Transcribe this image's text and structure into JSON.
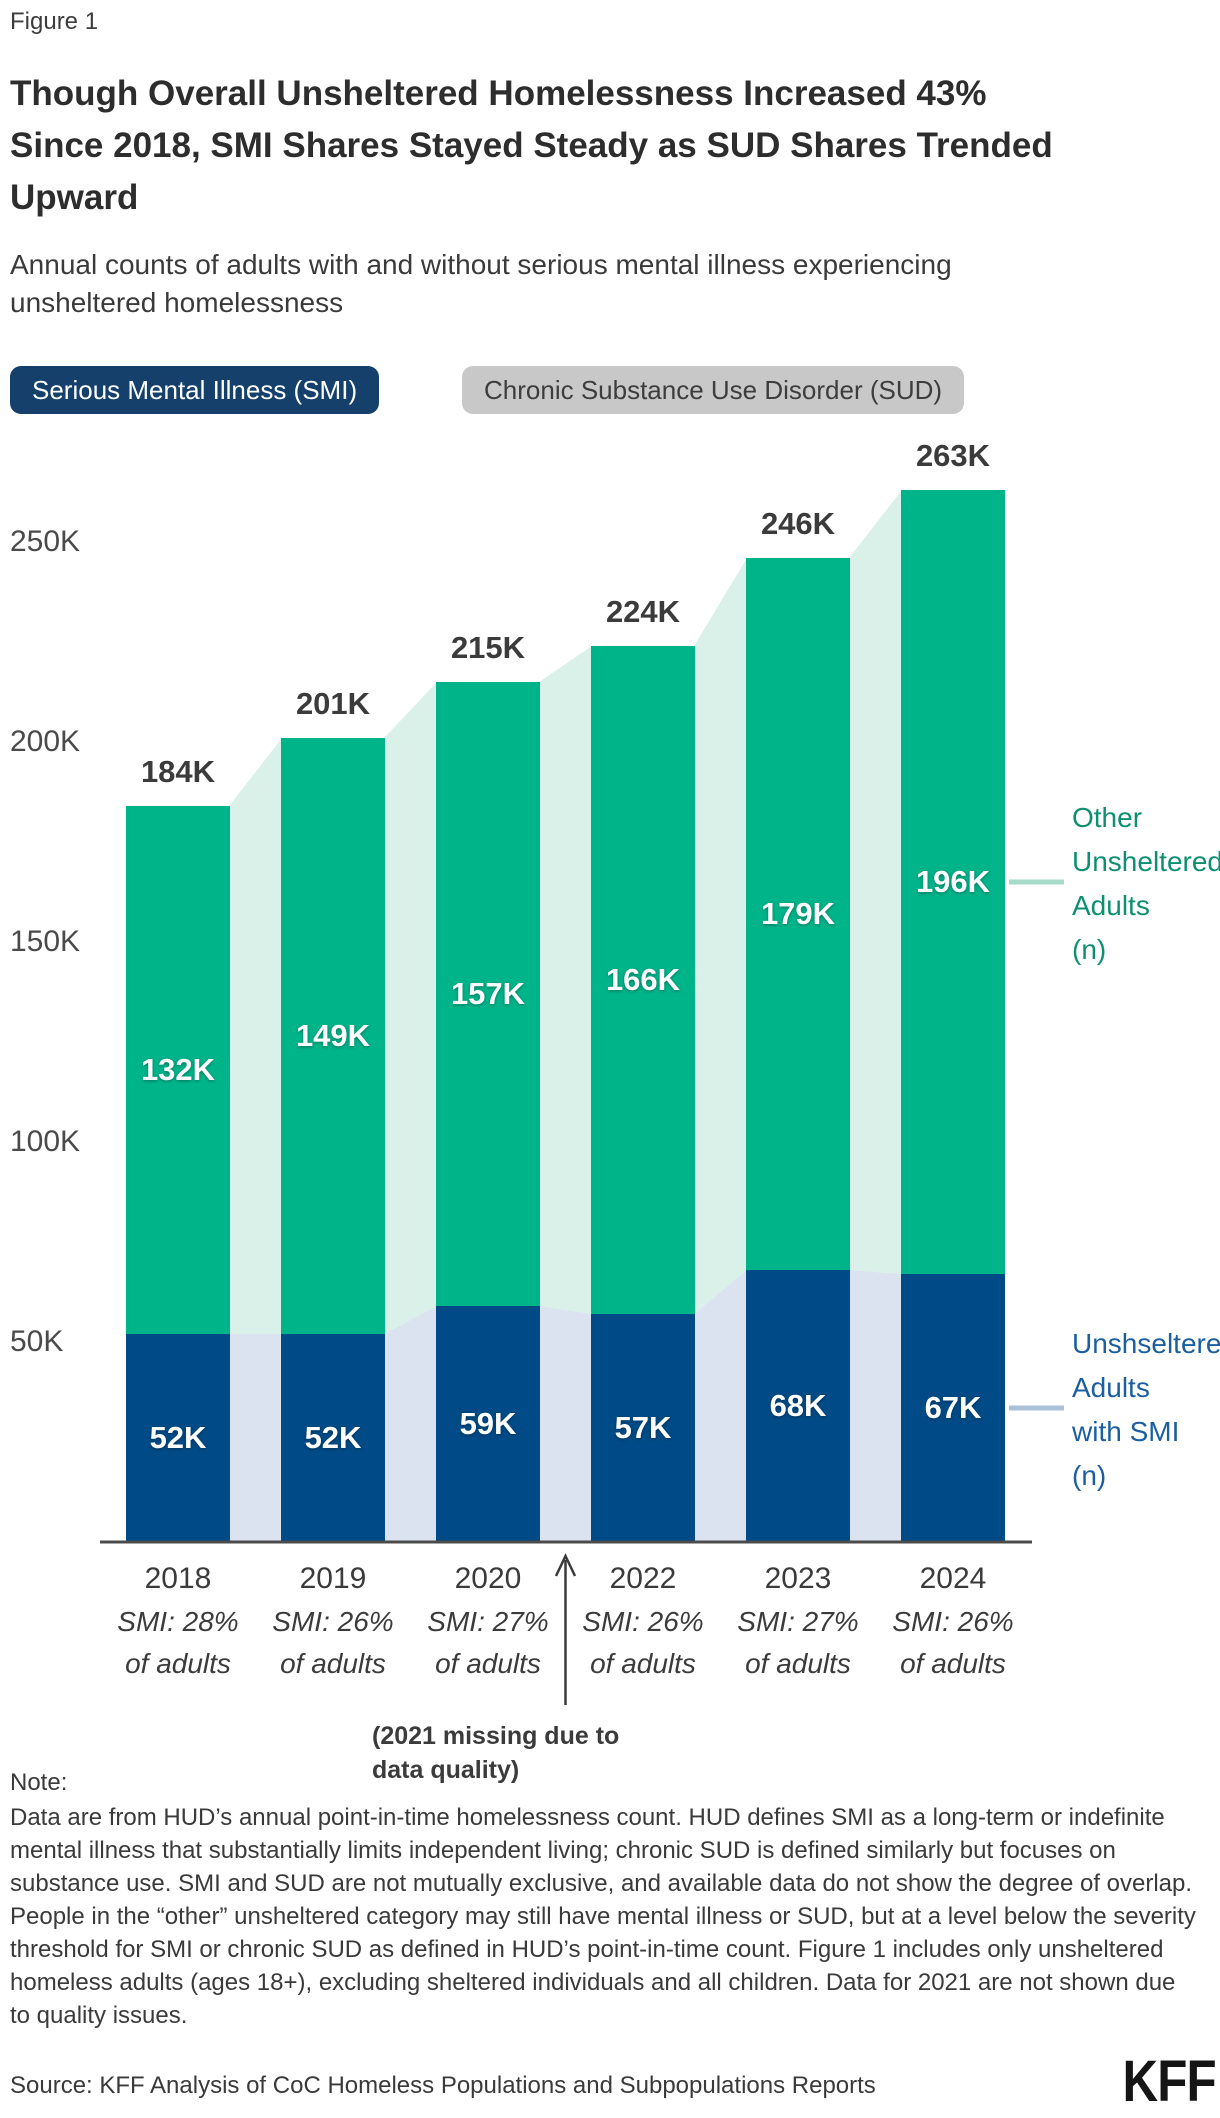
{
  "header": {
    "figure_label": "Figure 1",
    "title_lines": [
      "Though Overall Unsheltered Homelessness Increased 43%",
      "Since 2018, SMI Shares Stayed Steady as SUD Shares Trended",
      "Upward"
    ],
    "subtitle_lines": [
      "Annual counts of adults with and without serious mental illness experiencing",
      "unsheltered homelessness"
    ]
  },
  "legend": {
    "smi_label": "Serious Mental Illness (SMI)",
    "sud_label": "Chronic Substance Use Disorder (SUD)"
  },
  "annotations": {
    "other_lines": [
      "Other",
      "Unsheltered",
      "Adults",
      "(n)"
    ],
    "smi_lines": [
      "Unshseltered",
      "Adults",
      "with SMI",
      "(n)"
    ],
    "missing_note_lines": [
      "(2021 missing due to",
      "data quality)"
    ]
  },
  "note": {
    "label": "Note:",
    "text": "Data are from HUD’s annual point-in-time homelessness count. HUD defines SMI as a long-term or indefinite mental illness that substantially limits independent living; chronic SUD is defined similarly but focuses on substance use. SMI and SUD are not mutually exclusive, and available data do not show the degree of overlap. People in the “other” unsheltered category may still have mental illness or SUD, but at a level below the severity threshold for SMI or chronic SUD as defined in HUD’s point-in-time count. Figure 1 includes only unsheltered homeless adults (ages 18+), excluding sheltered individuals and all children. Data for 2021 are not shown due to quality issues."
  },
  "source": {
    "text": "Source: KFF Analysis of CoC Homeless Populations and Subpopulations Reports"
  },
  "logo": {
    "text": "KFF"
  },
  "colors": {
    "green": "#00B48A",
    "light_green": "#D9F1E9",
    "navy": "#004B87",
    "light_blue": "#DAE3EF",
    "axis": "#4b4b4b",
    "arrow": "#3b3b3b",
    "green_text": "#0F8F72",
    "blue_text": "#1B5FA0",
    "connector_green": "#A6DBC9",
    "connector_blue": "#AAC1D9",
    "pill_navy": "#14406B",
    "pill_gray": "#C8C8C8"
  },
  "chart_data": {
    "type": "bar",
    "stacked": true,
    "unit": "thousands of adults",
    "categories": [
      "2018",
      "2019",
      "2020",
      "2022",
      "2023",
      "2024"
    ],
    "series": [
      {
        "name": "Unshseltered Adults with SMI (n)",
        "values": [
          52,
          52,
          59,
          57,
          68,
          67
        ],
        "labels": [
          "52K",
          "52K",
          "59K",
          "57K",
          "68K",
          "67K"
        ],
        "color": "#004B87"
      },
      {
        "name": "Other Unsheltered Adults (n)",
        "values": [
          132,
          149,
          157,
          166,
          179,
          196
        ],
        "labels": [
          "132K",
          "149K",
          "157K",
          "166K",
          "179K",
          "196K"
        ],
        "color": "#00B48A"
      }
    ],
    "totals": {
      "values": [
        184,
        201,
        215,
        224,
        246,
        263
      ],
      "labels": [
        "184K",
        "201K",
        "215K",
        "224K",
        "246K",
        "263K"
      ]
    },
    "x_sub_labels": [
      [
        "SMI: 28%",
        "of adults"
      ],
      [
        "SMI: 26%",
        "of adults"
      ],
      [
        "SMI: 27%",
        "of adults"
      ],
      [
        "SMI: 26%",
        "of adults"
      ],
      [
        "SMI: 27%",
        "of adults"
      ],
      [
        "SMI: 26%",
        "of adults"
      ]
    ],
    "y_ticks": [
      "50K",
      "100K",
      "150K",
      "200K",
      "250K"
    ],
    "y_tick_values": [
      50,
      100,
      150,
      200,
      250
    ],
    "ylim": [
      0,
      285
    ],
    "grid": false,
    "missing_category": "2021",
    "legend_position": "right-annotations"
  }
}
